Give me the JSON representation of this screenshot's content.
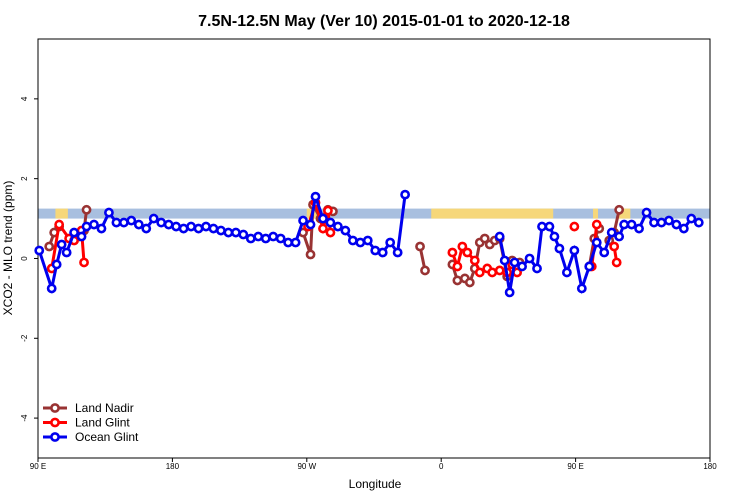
{
  "chart_data": {
    "type": "line",
    "title": "7.5N-12.5N May (Ver 10)   2015-01-01 to 2020-12-18",
    "xlabel": "Longitude",
    "ylabel": "XCO2 - MLO trend (ppm)",
    "xlim": [
      -90,
      180
    ],
    "ylim": [
      -5,
      5.5
    ],
    "x_ticks": [
      {
        "value": -90,
        "label": "90 E"
      },
      {
        "value": -36,
        "label": "180"
      },
      {
        "value": 18,
        "label": "90 W"
      },
      {
        "value": 72,
        "label": "0"
      },
      {
        "value": 126,
        "label": "90 E"
      },
      {
        "value": 180,
        "label": "180"
      }
    ],
    "y_ticks": [
      {
        "value": -4,
        "label": "-4"
      },
      {
        "value": -2,
        "label": "-2"
      },
      {
        "value": 0,
        "label": "0"
      },
      {
        "value": 2,
        "label": "2"
      },
      {
        "value": 4,
        "label": "4"
      }
    ],
    "grid": false,
    "legend_position": "bottom-left",
    "band": {
      "y_low": 1.0,
      "y_high": 1.25,
      "color": "#a8bfdf",
      "land_color": "#f6d77a"
    },
    "land_segments": [
      [
        -83,
        -78
      ],
      [
        18,
        22
      ],
      [
        68,
        117
      ],
      [
        133,
        135
      ],
      [
        143,
        148
      ]
    ],
    "series": [
      {
        "name": "Land Nadir",
        "color": "#993333",
        "segments": [
          [
            [
              -85.5,
              0.3
            ],
            [
              -83.5,
              0.65
            ],
            [
              -81.5,
              0.8
            ]
          ],
          [
            [
              -76.5,
              0.5
            ],
            [
              -73.5,
              0.55
            ],
            [
              -71.5,
              0.7
            ],
            [
              -70.5,
              1.22
            ]
          ],
          [
            [
              16.5,
              0.65
            ],
            [
              19.5,
              0.1
            ],
            [
              20.5,
              1.35
            ],
            [
              23.5,
              1.0
            ],
            [
              26.5,
              1.22
            ],
            [
              28.5,
              1.18
            ]
          ],
          [
            [
              63.5,
              0.3
            ],
            [
              65.5,
              -0.3
            ]
          ],
          [
            [
              91.5,
              0.35
            ],
            [
              93.5,
              0.45
            ],
            [
              95.5,
              0.5
            ],
            [
              98.5,
              -0.45
            ],
            [
              100.5,
              -0.05
            ],
            [
              103.5,
              -0.1
            ]
          ],
          [
            [
              76.5,
              -0.15
            ],
            [
              78.5,
              -0.55
            ],
            [
              81.5,
              -0.5
            ],
            [
              83.5,
              -0.6
            ],
            [
              85.5,
              -0.25
            ],
            [
              87.5,
              0.4
            ],
            [
              89.5,
              0.5
            ]
          ],
          [
            [
              131.5,
              -0.2
            ],
            [
              133.5,
              0.5
            ],
            [
              135.5,
              0.75
            ]
          ],
          [
            [
              139.5,
              0.45
            ],
            [
              141.5,
              0.65
            ],
            [
              143.5,
              1.22
            ]
          ]
        ]
      },
      {
        "name": "Land Glint",
        "color": "#ff0000",
        "segments": [
          [
            [
              -84.5,
              -0.25
            ],
            [
              -81.5,
              0.85
            ],
            [
              -77.5,
              0.5
            ],
            [
              -75.5,
              0.45
            ],
            [
              -72.5,
              0.7
            ],
            [
              -71.5,
              -0.1
            ]
          ],
          [
            [
              18.5,
              0.8
            ],
            [
              21.5,
              1.4
            ],
            [
              24.5,
              0.75
            ],
            [
              26.5,
              1.2
            ],
            [
              27.5,
              0.65
            ]
          ],
          [
            [
              76.5,
              0.15
            ],
            [
              78.5,
              -0.2
            ],
            [
              80.5,
              0.3
            ],
            [
              82.5,
              0.15
            ],
            [
              85.5,
              -0.05
            ],
            [
              87.5,
              -0.35
            ],
            [
              90.5,
              -0.25
            ],
            [
              92.5,
              -0.35
            ],
            [
              95.5,
              -0.3
            ],
            [
              98.5,
              -0.35
            ],
            [
              100.5,
              -0.15
            ],
            [
              102.5,
              -0.35
            ]
          ],
          [
            [
              125.5,
              0.8
            ]
          ],
          [
            [
              132.5,
              -0.2
            ],
            [
              134.5,
              0.85
            ]
          ],
          [
            [
              141.5,
              0.3
            ],
            [
              142.5,
              -0.1
            ]
          ]
        ]
      },
      {
        "name": "Ocean Glint",
        "color": "#0000ee",
        "segments": [
          [
            [
              -89.5,
              0.2
            ],
            [
              -84.5,
              -0.75
            ],
            [
              -82.5,
              -0.15
            ],
            [
              -80.5,
              0.35
            ],
            [
              -78.5,
              0.15
            ],
            [
              -75.5,
              0.65
            ],
            [
              -72.5,
              0.55
            ],
            [
              -70.5,
              0.8
            ],
            [
              -67.5,
              0.85
            ],
            [
              -64.5,
              0.75
            ],
            [
              -61.5,
              1.15
            ],
            [
              -58.5,
              0.9
            ],
            [
              -55.5,
              0.9
            ],
            [
              -52.5,
              0.95
            ],
            [
              -49.5,
              0.85
            ],
            [
              -46.5,
              0.75
            ],
            [
              -43.5,
              1.0
            ],
            [
              -40.5,
              0.9
            ],
            [
              -37.5,
              0.85
            ],
            [
              -34.5,
              0.8
            ],
            [
              -31.5,
              0.75
            ],
            [
              -28.5,
              0.8
            ],
            [
              -25.5,
              0.75
            ],
            [
              -22.5,
              0.8
            ],
            [
              -19.5,
              0.75
            ],
            [
              -16.5,
              0.7
            ],
            [
              -13.5,
              0.65
            ],
            [
              -10.5,
              0.65
            ],
            [
              -7.5,
              0.6
            ],
            [
              -4.5,
              0.5
            ],
            [
              -1.5,
              0.55
            ],
            [
              1.5,
              0.5
            ],
            [
              4.5,
              0.55
            ],
            [
              7.5,
              0.5
            ],
            [
              10.5,
              0.4
            ],
            [
              13.5,
              0.4
            ],
            [
              16.5,
              0.95
            ],
            [
              19.5,
              0.85
            ],
            [
              21.5,
              1.55
            ],
            [
              24.5,
              1.0
            ],
            [
              27.5,
              0.9
            ],
            [
              30.5,
              0.8
            ],
            [
              33.5,
              0.7
            ],
            [
              36.5,
              0.45
            ],
            [
              39.5,
              0.4
            ],
            [
              42.5,
              0.45
            ],
            [
              45.5,
              0.2
            ],
            [
              48.5,
              0.15
            ],
            [
              51.5,
              0.4
            ],
            [
              54.5,
              0.15
            ],
            [
              57.5,
              1.6
            ]
          ],
          [
            [
              95.5,
              0.55
            ],
            [
              97.5,
              -0.05
            ],
            [
              99.5,
              -0.85
            ],
            [
              101.5,
              -0.1
            ],
            [
              104.5,
              -0.2
            ],
            [
              107.5,
              0.0
            ],
            [
              110.5,
              -0.25
            ],
            [
              112.5,
              0.8
            ],
            [
              115.5,
              0.8
            ],
            [
              117.5,
              0.55
            ],
            [
              119.5,
              0.25
            ],
            [
              122.5,
              -0.35
            ],
            [
              125.5,
              0.2
            ],
            [
              128.5,
              -0.75
            ],
            [
              131.5,
              -0.2
            ],
            [
              134.5,
              0.4
            ],
            [
              137.5,
              0.15
            ],
            [
              140.5,
              0.65
            ],
            [
              143.5,
              0.55
            ],
            [
              145.5,
              0.85
            ],
            [
              148.5,
              0.85
            ],
            [
              151.5,
              0.75
            ],
            [
              154.5,
              1.15
            ],
            [
              157.5,
              0.9
            ],
            [
              160.5,
              0.9
            ],
            [
              163.5,
              0.95
            ],
            [
              166.5,
              0.85
            ],
            [
              169.5,
              0.75
            ],
            [
              172.5,
              1.0
            ],
            [
              175.5,
              0.9
            ]
          ]
        ]
      }
    ]
  }
}
